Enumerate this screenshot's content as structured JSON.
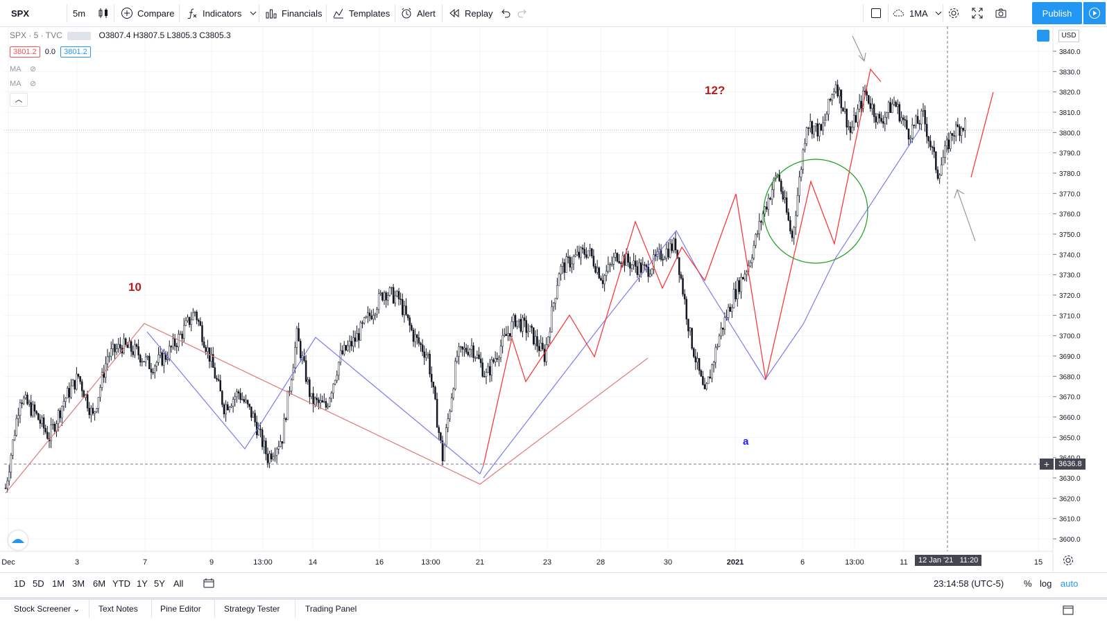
{
  "toolbar": {
    "symbol": "SPX",
    "interval": "5m",
    "compare": "Compare",
    "indicators": "Indicators",
    "financials": "Financials",
    "templates": "Templates",
    "alert": "Alert",
    "replay": "Replay",
    "ma_preset": "1MA",
    "publish": "Publish"
  },
  "legend": {
    "title": "SPX · 5 · TVC",
    "ohlc": "O3807.4 H3807.5 L3805.3 C3805.3",
    "bid": "3801.2",
    "spread": "0.0",
    "ask": "3801.2",
    "ma1": "MA",
    "ma2": "MA"
  },
  "annotations": {
    "wave10": "10",
    "wave12": "12?",
    "wave_a": "a"
  },
  "price_axis": {
    "currency": "USD",
    "crosshair_price": "3636.8"
  },
  "time_axis": {
    "crosshair_date": "12 Jan '21",
    "crosshair_time": "11:20"
  },
  "bottom": {
    "ranges": [
      "1D",
      "5D",
      "1M",
      "3M",
      "6M",
      "YTD",
      "1Y",
      "5Y",
      "All"
    ],
    "clock": "23:14:58 (UTC-5)",
    "percent": "%",
    "log": "log",
    "auto": "auto"
  },
  "tabs": [
    "Stock Screener",
    "Text Notes",
    "Pine Editor",
    "Strategy Tester",
    "Trading Panel"
  ],
  "colors": {
    "accent": "#2196f3",
    "wave_red": "#ff2b2b",
    "wave_pink": "#e07a7a",
    "wave_blue": "#7b7bf0",
    "circle": "#1a9e1a",
    "label_red": "#b71c1c",
    "label_blue": "#1a1aff",
    "candles": "#131722"
  },
  "chart_data": {
    "type": "line",
    "symbol": "SPX",
    "interval": "5m",
    "ylim": [
      3595,
      3845
    ],
    "y_ticks": [
      3600,
      3610,
      3620,
      3630,
      3640,
      3650,
      3660,
      3670,
      3680,
      3690,
      3700,
      3710,
      3720,
      3730,
      3740,
      3750,
      3760,
      3770,
      3780,
      3790,
      3800,
      3810,
      3820,
      3830,
      3840
    ],
    "x_tick_labels": [
      "Dec",
      "3",
      "7",
      "9",
      "13:00",
      "14",
      "16",
      "13:00",
      "21",
      "23",
      "28",
      "30",
      "2021",
      "6",
      "13:00",
      "11",
      "15"
    ],
    "grid": true,
    "last_price": 3801.2,
    "price_path": [
      {
        "t": 0.0,
        "p": 3625
      },
      {
        "t": 1.0,
        "p": 3670
      },
      {
        "t": 2.0,
        "p": 3662
      },
      {
        "t": 3.0,
        "p": 3650
      },
      {
        "t": 4.0,
        "p": 3668
      },
      {
        "t": 5.0,
        "p": 3680
      },
      {
        "t": 6.0,
        "p": 3660
      },
      {
        "t": 7.0,
        "p": 3690
      },
      {
        "t": 8.0,
        "p": 3695
      },
      {
        "t": 9.0,
        "p": 3692
      },
      {
        "t": 10.0,
        "p": 3685
      },
      {
        "t": 11.0,
        "p": 3690
      },
      {
        "t": 12.0,
        "p": 3700
      },
      {
        "t": 13.0,
        "p": 3712
      },
      {
        "t": 14.0,
        "p": 3690
      },
      {
        "t": 15.0,
        "p": 3665
      },
      {
        "t": 16.0,
        "p": 3672
      },
      {
        "t": 17.0,
        "p": 3660
      },
      {
        "t": 18.0,
        "p": 3640
      },
      {
        "t": 19.0,
        "p": 3650
      },
      {
        "t": 20.0,
        "p": 3700
      },
      {
        "t": 21.0,
        "p": 3668
      },
      {
        "t": 22.0,
        "p": 3665
      },
      {
        "t": 23.0,
        "p": 3690
      },
      {
        "t": 24.0,
        "p": 3698
      },
      {
        "t": 25.0,
        "p": 3710
      },
      {
        "t": 26.0,
        "p": 3722
      },
      {
        "t": 27.0,
        "p": 3718
      },
      {
        "t": 28.0,
        "p": 3700
      },
      {
        "t": 29.0,
        "p": 3690
      },
      {
        "t": 30.0,
        "p": 3640
      },
      {
        "t": 31.0,
        "p": 3690
      },
      {
        "t": 32.0,
        "p": 3695
      },
      {
        "t": 33.0,
        "p": 3680
      },
      {
        "t": 34.0,
        "p": 3695
      },
      {
        "t": 35.0,
        "p": 3708
      },
      {
        "t": 36.0,
        "p": 3702
      },
      {
        "t": 37.0,
        "p": 3690
      },
      {
        "t": 38.0,
        "p": 3732
      },
      {
        "t": 39.0,
        "p": 3738
      },
      {
        "t": 40.0,
        "p": 3742
      },
      {
        "t": 41.0,
        "p": 3728
      },
      {
        "t": 42.0,
        "p": 3740
      },
      {
        "t": 43.0,
        "p": 3735
      },
      {
        "t": 44.0,
        "p": 3732
      },
      {
        "t": 45.0,
        "p": 3740
      },
      {
        "t": 46.0,
        "p": 3745
      },
      {
        "t": 47.0,
        "p": 3700
      },
      {
        "t": 48.0,
        "p": 3670
      },
      {
        "t": 49.0,
        "p": 3700
      },
      {
        "t": 50.0,
        "p": 3720
      },
      {
        "t": 51.0,
        "p": 3735
      },
      {
        "t": 52.0,
        "p": 3760
      },
      {
        "t": 53.0,
        "p": 3780
      },
      {
        "t": 54.0,
        "p": 3748
      },
      {
        "t": 55.0,
        "p": 3805
      },
      {
        "t": 56.0,
        "p": 3800
      },
      {
        "t": 57.0,
        "p": 3825
      },
      {
        "t": 58.0,
        "p": 3800
      },
      {
        "t": 59.0,
        "p": 3820
      },
      {
        "t": 60.0,
        "p": 3805
      },
      {
        "t": 61.0,
        "p": 3815
      },
      {
        "t": 62.0,
        "p": 3800
      },
      {
        "t": 63.0,
        "p": 3808
      },
      {
        "t": 64.0,
        "p": 3780
      },
      {
        "t": 65.0,
        "p": 3800
      },
      {
        "t": 66.0,
        "p": 3805
      }
    ]
  }
}
